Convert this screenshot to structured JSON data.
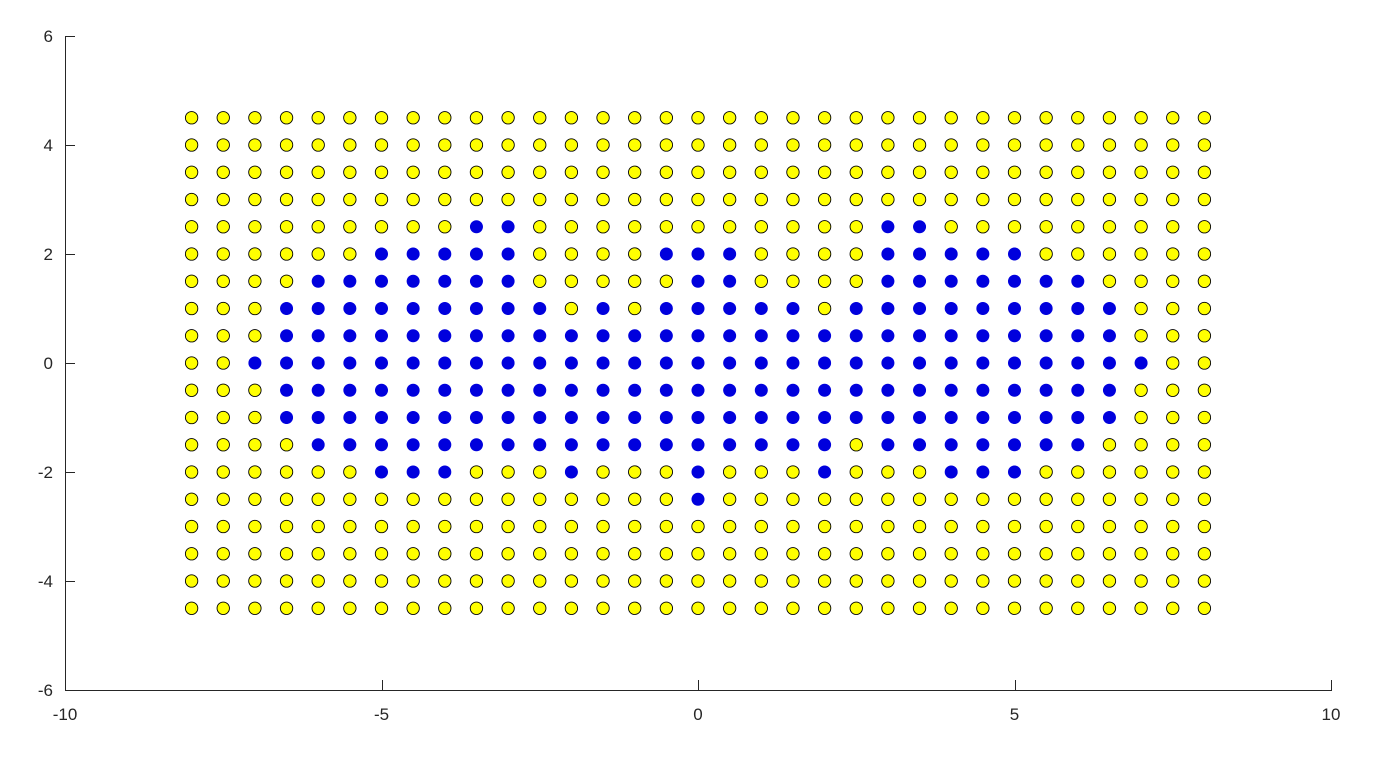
{
  "chart_data": {
    "type": "scatter",
    "title": "",
    "xlabel": "",
    "ylabel": "",
    "xlim": [
      -10,
      10
    ],
    "ylim": [
      -6,
      6
    ],
    "xticks": [
      -10,
      -5,
      0,
      5,
      10
    ],
    "yticks": [
      -6,
      -4,
      -2,
      0,
      2,
      4,
      6
    ],
    "grid": false,
    "legend": "none",
    "point_grid": {
      "x_start": -8,
      "x_end": 8,
      "y_start": -4.5,
      "y_end": 4.5,
      "step": 0.5
    },
    "colors": {
      "yellow_fill": "#ffff00",
      "blue_fill": "#0000dd",
      "marker_edge": "#000000"
    },
    "blue_rows": [
      {
        "y": 2.5,
        "x": [
          -3.5,
          -3,
          3,
          3.5
        ]
      },
      {
        "y": 2,
        "x": [
          -5,
          -4.5,
          -4,
          -3.5,
          -3,
          -0.5,
          0,
          0.5,
          3,
          3.5,
          4,
          4.5,
          5
        ]
      },
      {
        "y": 1.5,
        "x": [
          -6,
          -5.5,
          -5,
          -4.5,
          -4,
          -3.5,
          -3,
          0,
          0.5,
          3,
          3.5,
          4,
          4.5,
          5,
          5.5,
          6
        ]
      },
      {
        "y": 1,
        "x": [
          -6.5,
          -6,
          -5.5,
          -5,
          -4.5,
          -4,
          -3.5,
          -3,
          -2.5,
          -1.5,
          -0.5,
          0,
          0.5,
          1,
          1.5,
          2.5,
          3,
          3.5,
          4,
          4.5,
          5,
          5.5,
          6,
          6.5
        ]
      },
      {
        "y": 0.5,
        "x": [
          -6.5,
          -6,
          -5.5,
          -5,
          -4.5,
          -4,
          -3.5,
          -3,
          -2.5,
          -2,
          -1.5,
          -1,
          -0.5,
          0,
          0.5,
          1,
          1.5,
          2,
          2.5,
          3,
          3.5,
          4,
          4.5,
          5,
          5.5,
          6,
          6.5
        ]
      },
      {
        "y": 0,
        "x": [
          -7,
          -6.5,
          -6,
          -5.5,
          -5,
          -4.5,
          -4,
          -3.5,
          -3,
          -2.5,
          -2,
          -1.5,
          -1,
          -0.5,
          0,
          0.5,
          1,
          1.5,
          2,
          2.5,
          3,
          3.5,
          4,
          4.5,
          5,
          5.5,
          6,
          6.5,
          7
        ]
      },
      {
        "y": -0.5,
        "x": [
          -6.5,
          -6,
          -5.5,
          -5,
          -4.5,
          -4,
          -3.5,
          -3,
          -2.5,
          -2,
          -1.5,
          -1,
          -0.5,
          0,
          0.5,
          1,
          1.5,
          2,
          2.5,
          3,
          3.5,
          4,
          4.5,
          5,
          5.5,
          6,
          6.5
        ]
      },
      {
        "y": -1,
        "x": [
          -6.5,
          -6,
          -5.5,
          -5,
          -4.5,
          -4,
          -3.5,
          -3,
          -2.5,
          -2,
          -1.5,
          -1,
          -0.5,
          0,
          0.5,
          1,
          1.5,
          2,
          2.5,
          3,
          3.5,
          4,
          4.5,
          5,
          5.5,
          6,
          6.5
        ]
      },
      {
        "y": -1.5,
        "x": [
          -6,
          -5.5,
          -5,
          -4.5,
          -4,
          -3.5,
          -3,
          -2.5,
          -2,
          -1.5,
          -1,
          -0.5,
          0,
          0.5,
          1,
          1.5,
          2,
          3,
          3.5,
          4,
          4.5,
          5,
          5.5,
          6
        ]
      },
      {
        "y": -2,
        "x": [
          -5,
          -4.5,
          -4,
          -2,
          0,
          2,
          4,
          4.5,
          5
        ]
      },
      {
        "y": -2.5,
        "x": [
          0
        ]
      }
    ]
  }
}
